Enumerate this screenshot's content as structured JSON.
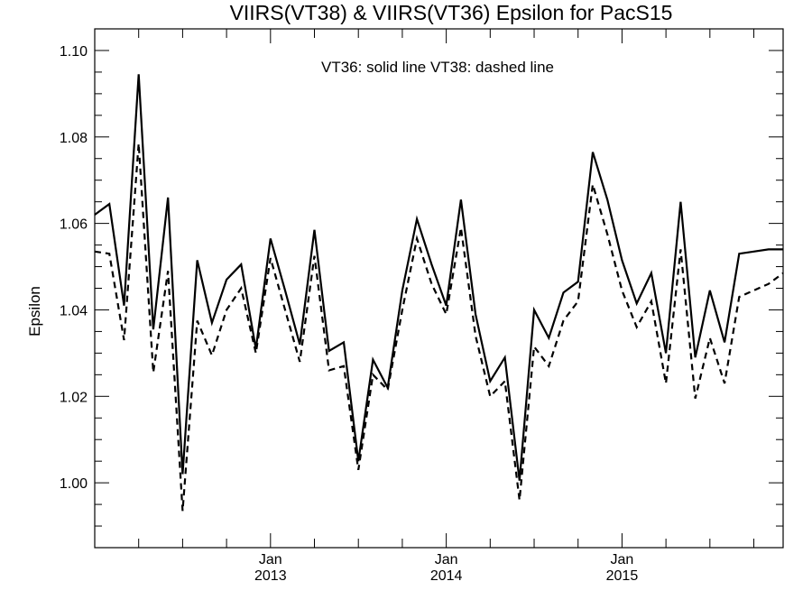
{
  "chart_data": {
    "type": "line",
    "title": "VIIRS(VT38) & VIIRS(VT36)  Epsilon for PacS15",
    "xlabel": "",
    "ylabel": "Epsilon",
    "annotation": "VT36: solid line   VT38: dashed line",
    "x": [
      "2012-01",
      "2012-02",
      "2012-03",
      "2012-04",
      "2012-05",
      "2012-06",
      "2012-07",
      "2012-08",
      "2012-09",
      "2012-10",
      "2012-11",
      "2012-12",
      "2013-01",
      "2013-02",
      "2013-03",
      "2013-04",
      "2013-05",
      "2013-06",
      "2013-07",
      "2013-08",
      "2013-09",
      "2013-10",
      "2013-11",
      "2013-12",
      "2014-01",
      "2014-02",
      "2014-03",
      "2014-04",
      "2014-05",
      "2014-06",
      "2014-07",
      "2014-08",
      "2014-09",
      "2014-10",
      "2014-11",
      "2014-12",
      "2015-01",
      "2015-02",
      "2015-03",
      "2015-04",
      "2015-05",
      "2015-06",
      "2015-07",
      "2015-08",
      "2015-09",
      "2015-10",
      "2015-11",
      "2015-12"
    ],
    "series": [
      {
        "name": "VT36",
        "style": "solid",
        "values": [
          1.062,
          1.0645,
          1.041,
          1.0945,
          1.0355,
          1.066,
          1.002,
          1.0515,
          1.037,
          1.047,
          1.0505,
          1.031,
          1.0565,
          1.0445,
          1.032,
          1.0585,
          1.0305,
          1.0325,
          1.005,
          1.0285,
          1.022,
          1.0445,
          1.061,
          1.0505,
          1.041,
          1.0655,
          1.039,
          1.0235,
          1.029,
          1.0005,
          1.04,
          1.0335,
          1.044,
          1.0465,
          1.0765,
          1.0655,
          1.0515,
          1.0415,
          1.0485,
          1.03,
          1.065,
          1.029,
          1.0445,
          1.0325,
          1.053,
          1.0535,
          1.054,
          1.054
        ]
      },
      {
        "name": "VT38",
        "style": "dashed",
        "values": [
          1.0535,
          1.053,
          1.033,
          1.0785,
          1.0255,
          1.049,
          0.9935,
          1.0375,
          1.0295,
          1.04,
          1.045,
          1.03,
          1.052,
          1.04,
          1.028,
          1.0525,
          1.026,
          1.027,
          1.003,
          1.025,
          1.0215,
          1.04,
          1.0565,
          1.046,
          1.039,
          1.059,
          1.034,
          1.02,
          1.0235,
          0.996,
          1.0315,
          1.027,
          1.0375,
          1.042,
          1.069,
          1.0575,
          1.0445,
          1.036,
          1.042,
          1.023,
          1.054,
          1.0195,
          1.0335,
          1.023,
          1.043,
          1.0445,
          1.046,
          1.0485
        ]
      }
    ],
    "ylim": [
      0.985,
      1.105
    ],
    "yticks": [
      "1.00",
      "1.02",
      "1.04",
      "1.06",
      "1.08",
      "1.10"
    ],
    "xtick_labels": [
      {
        "month": "Jan",
        "year": "2013"
      },
      {
        "month": "Jan",
        "year": "2014"
      },
      {
        "month": "Jan",
        "year": "2015"
      }
    ],
    "grid": false,
    "line_color": "#000000"
  }
}
